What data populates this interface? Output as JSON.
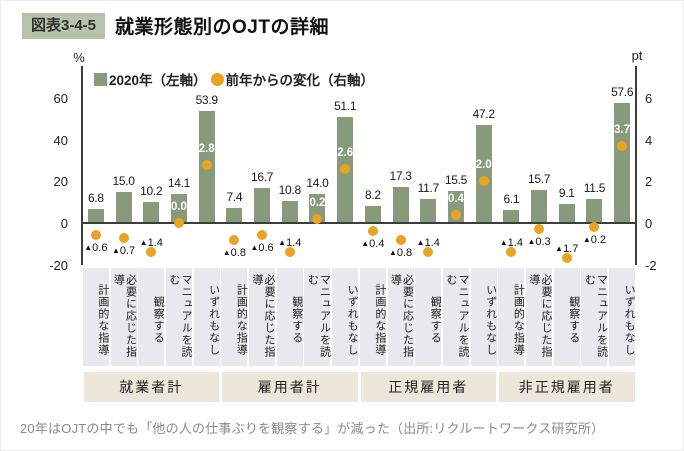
{
  "header": {
    "badge": "図表3-4-5",
    "title": "就業形態別のOJTの詳細"
  },
  "caption": "20年はOJTの中でも「他の人の仕事ぶりを観察する」が減った（出所:リクルートワークス研究所）",
  "colors": {
    "bar": "#879a7c",
    "dot": "#e8a41f",
    "badge_bg": "#b6c2aa",
    "category_bg": "#e7e9ef",
    "group_bg": "#ece7da",
    "axis": "#3d3d3d"
  },
  "chart_data": {
    "type": "bar",
    "title": "就業形態別のOJTの詳細",
    "legend": [
      {
        "label": "2020年（左軸）",
        "marker": "square"
      },
      {
        "label": "前年からの変化（右軸）",
        "marker": "circle"
      }
    ],
    "legend_position": "top",
    "grid": false,
    "left_axis": {
      "unit": "%",
      "ticks": [
        60,
        40,
        20,
        0,
        -20
      ],
      "range": [
        -20,
        60
      ]
    },
    "right_axis": {
      "unit": "pt",
      "ticks": [
        6,
        4,
        2,
        0,
        -2
      ],
      "range": [
        -2,
        6
      ]
    },
    "negative_marker": "▲",
    "categories": [
      "計画的な指導",
      "必要に応じた指導",
      "観察する",
      "マニュアルを読む",
      "いずれもなし"
    ],
    "groups": [
      {
        "label": "就業者計",
        "bars": [
          6.8,
          15.0,
          10.2,
          14.1,
          53.9
        ],
        "changes": [
          -0.6,
          -0.7,
          -1.4,
          0.0,
          2.8
        ]
      },
      {
        "label": "雇用者計",
        "bars": [
          7.4,
          16.7,
          10.8,
          14.0,
          51.1
        ],
        "changes": [
          -0.8,
          -0.6,
          -1.4,
          0.2,
          2.6
        ]
      },
      {
        "label": "正規雇用者",
        "bars": [
          8.2,
          17.3,
          11.7,
          15.5,
          47.2
        ],
        "changes": [
          -0.4,
          -0.8,
          -1.4,
          0.4,
          2.0
        ]
      },
      {
        "label": "非正規雇用者",
        "bars": [
          6.1,
          15.7,
          9.1,
          11.5,
          57.6
        ],
        "changes": [
          -1.4,
          -0.3,
          -1.7,
          -0.2,
          3.7
        ]
      }
    ]
  }
}
